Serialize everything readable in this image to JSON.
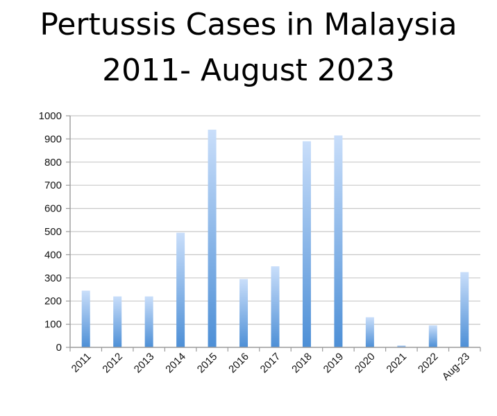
{
  "title": {
    "line1": "Pertussis Cases in Malaysia",
    "line2": "2011- August 2023"
  },
  "colors": {
    "bar_top": "#c9defa",
    "bar_bottom": "#4d8fd6",
    "grid": "#c8c8c8",
    "axis": "#9a9a9a"
  },
  "chart_data": {
    "type": "bar",
    "categories": [
      "2011",
      "2012",
      "2013",
      "2014",
      "2015",
      "2016",
      "2017",
      "2018",
      "2019",
      "2020",
      "2021",
      "2022",
      "Aug-23"
    ],
    "values": [
      245,
      220,
      220,
      495,
      940,
      295,
      350,
      890,
      915,
      130,
      8,
      95,
      325
    ],
    "ylim": [
      0,
      1000
    ],
    "yticks": [
      0,
      100,
      200,
      300,
      400,
      500,
      600,
      700,
      800,
      900,
      1000
    ],
    "grid": true,
    "legend": "none"
  }
}
